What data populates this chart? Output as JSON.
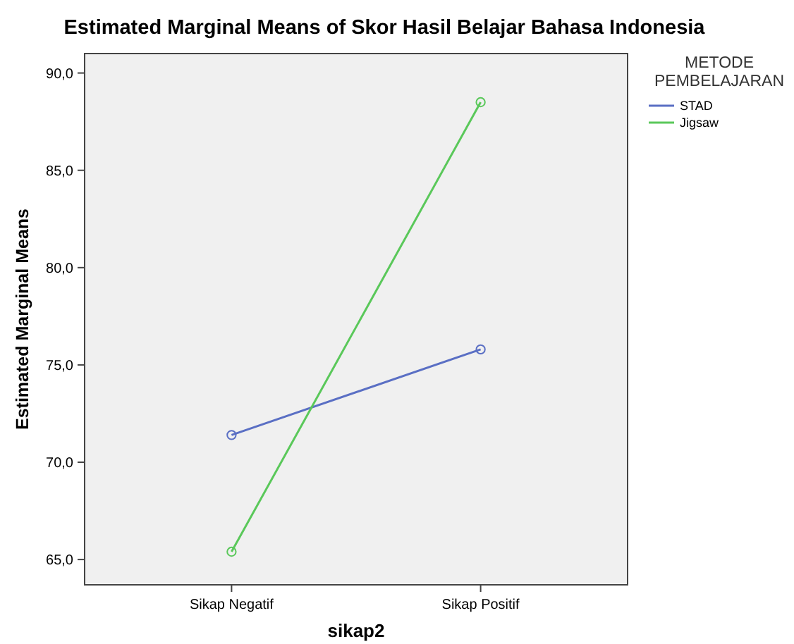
{
  "chart_data": {
    "type": "line",
    "title": "Estimated Marginal Means of Skor Hasil Belajar Bahasa Indonesia",
    "xlabel": "sikap2",
    "ylabel": "Estimated Marginal Means",
    "legend_title": "METODE PEMBELAJARAN",
    "categories": [
      "Sikap Negatif",
      "Sikap Positif"
    ],
    "series": [
      {
        "name": "STAD",
        "color": "#5a6fc4",
        "values": [
          71.4,
          75.8
        ]
      },
      {
        "name": "Jigsaw",
        "color": "#5ac85a",
        "values": [
          65.4,
          88.5
        ]
      }
    ],
    "ylim": [
      63.7,
      91
    ],
    "yticks": [
      {
        "value": 65,
        "label": "65,0"
      },
      {
        "value": 70,
        "label": "70,0"
      },
      {
        "value": 75,
        "label": "75,0"
      },
      {
        "value": 80,
        "label": "80,0"
      },
      {
        "value": 85,
        "label": "85,0"
      },
      {
        "value": 90,
        "label": "90,0"
      }
    ],
    "marker": "circle",
    "legend": "right",
    "grid": false
  }
}
